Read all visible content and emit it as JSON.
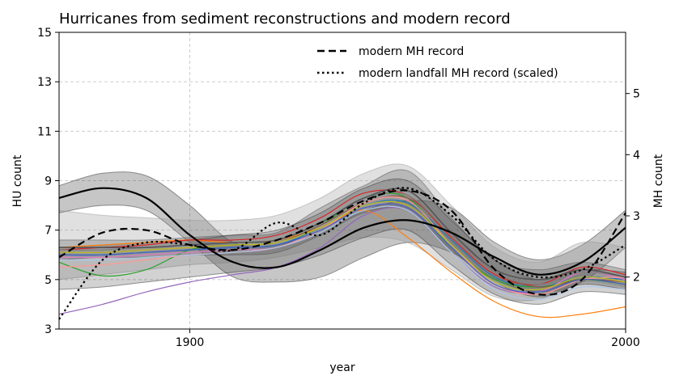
{
  "chart_data": {
    "type": "line",
    "title": "Hurricanes from sediment reconstructions and modern record",
    "xlabel": "year",
    "ylabel": "HU count",
    "y2label": "MH count",
    "xlim": [
      1870,
      2000
    ],
    "ylim": [
      3,
      15
    ],
    "y2lim": [
      1.15,
      6.0
    ],
    "xticks": [
      1900,
      2000
    ],
    "yticks": [
      3,
      5,
      7,
      9,
      11,
      13,
      15
    ],
    "y2ticks": [
      2,
      3,
      4,
      5
    ],
    "grid": true,
    "legend_position": "top-center",
    "colors": {
      "black": "#000000",
      "band_dark": "#333333",
      "band_light": "#999999",
      "grid": "#cccccc"
    },
    "legend": [
      {
        "label": "modern MH record",
        "style": "dashed"
      },
      {
        "label": "modern landfall MH record (scaled)",
        "style": "dotted"
      }
    ],
    "bands": [
      {
        "color": "#333333",
        "opacity": 0.28,
        "x": [
          1870,
          1880,
          1890,
          1900,
          1910,
          1920,
          1930,
          1940,
          1950,
          1960,
          1970,
          1980,
          1990,
          2000
        ],
        "lower": [
          7.7,
          8.0,
          7.8,
          6.5,
          5.1,
          4.9,
          5.1,
          5.9,
          6.5,
          6.1,
          5.0,
          4.5,
          4.9,
          6.3
        ],
        "upper": [
          8.8,
          9.3,
          9.2,
          8.0,
          6.5,
          6.4,
          6.9,
          7.8,
          8.2,
          7.9,
          6.5,
          5.8,
          6.4,
          7.8
        ]
      },
      {
        "color": "#333333",
        "opacity": 0.28,
        "x": [
          1870,
          1880,
          1890,
          1900,
          1910,
          1920,
          1930,
          1940,
          1950,
          1960,
          1970,
          1980,
          1990,
          2000
        ],
        "lower": [
          5.8,
          5.9,
          5.9,
          6.0,
          6.0,
          6.1,
          6.8,
          7.7,
          7.8,
          6.2,
          4.9,
          4.3,
          4.8,
          4.6
        ],
        "upper": [
          6.6,
          6.6,
          6.6,
          6.7,
          6.8,
          6.9,
          7.9,
          8.8,
          9.4,
          7.5,
          5.8,
          5.4,
          5.7,
          5.4
        ]
      },
      {
        "color": "#999999",
        "opacity": 0.3,
        "x": [
          1870,
          1880,
          1890,
          1900,
          1910,
          1920,
          1930,
          1940,
          1950,
          1960,
          1970,
          1980,
          1990,
          2000
        ],
        "lower": [
          5.0,
          5.2,
          5.4,
          5.6,
          5.7,
          5.9,
          6.3,
          6.7,
          6.5,
          5.4,
          4.3,
          4.2,
          4.9,
          4.7
        ],
        "upper": [
          7.8,
          7.6,
          7.5,
          7.4,
          7.4,
          7.6,
          8.3,
          9.3,
          9.6,
          8.0,
          6.3,
          5.7,
          6.5,
          6.3
        ]
      },
      {
        "color": "#333333",
        "opacity": 0.22,
        "x": [
          1870,
          1880,
          1890,
          1900,
          1910,
          1920,
          1930,
          1940,
          1950,
          1960,
          1970,
          1980,
          1990,
          2000
        ],
        "lower": [
          4.6,
          4.7,
          4.9,
          5.1,
          5.3,
          5.5,
          6.0,
          6.7,
          7.0,
          5.6,
          4.4,
          4.0,
          4.5,
          4.4
        ],
        "upper": [
          6.3,
          6.4,
          6.5,
          6.6,
          6.8,
          7.0,
          7.7,
          8.7,
          9.0,
          7.4,
          5.8,
          5.0,
          5.4,
          5.3
        ]
      }
    ],
    "series": [
      {
        "name": "",
        "color": "#1f77b4",
        "width": 1.2,
        "x": [
          1870,
          1880,
          1890,
          1900,
          1910,
          1920,
          1930,
          1940,
          1950,
          1960,
          1970,
          1980,
          1990,
          2000
        ],
        "y": [
          6.0,
          6.0,
          6.1,
          6.2,
          6.3,
          6.4,
          7.1,
          8.0,
          8.1,
          6.6,
          5.1,
          4.7,
          5.1,
          5.0
        ]
      },
      {
        "name": "",
        "color": "#ff7f0e",
        "width": 1.2,
        "x": [
          1870,
          1880,
          1890,
          1900,
          1910,
          1920,
          1930,
          1940,
          1950,
          1960,
          1970,
          1980,
          1990,
          2000
        ],
        "y": [
          6.3,
          6.4,
          6.5,
          6.6,
          6.5,
          6.6,
          7.1,
          7.8,
          6.7,
          5.3,
          4.1,
          3.5,
          3.6,
          3.9
        ]
      },
      {
        "name": "",
        "color": "#2ca02c",
        "width": 1.2,
        "x": [
          1870,
          1880,
          1890,
          1900,
          1910,
          1920,
          1930,
          1940,
          1950,
          1960,
          1970,
          1980,
          1990,
          2000
        ],
        "y": [
          5.7,
          5.15,
          5.4,
          6.2,
          6.4,
          6.5,
          7.2,
          8.3,
          8.3,
          6.3,
          5.0,
          4.7,
          5.0,
          4.8
        ]
      },
      {
        "name": "",
        "color": "#d62728",
        "width": 1.2,
        "x": [
          1870,
          1880,
          1890,
          1900,
          1910,
          1920,
          1930,
          1940,
          1950,
          1960,
          1970,
          1980,
          1990,
          2000
        ],
        "y": [
          6.2,
          6.3,
          6.4,
          6.6,
          6.6,
          6.8,
          7.5,
          8.5,
          8.4,
          6.7,
          5.2,
          4.8,
          5.5,
          5.2
        ]
      },
      {
        "name": "",
        "color": "#9467bd",
        "width": 1.2,
        "x": [
          1870,
          1880,
          1890,
          1900,
          1910,
          1920,
          1930,
          1940,
          1950,
          1960,
          1970,
          1980,
          1990,
          2000
        ],
        "y": [
          3.6,
          4.0,
          4.5,
          4.9,
          5.2,
          5.5,
          6.3,
          7.6,
          7.8,
          6.1,
          4.7,
          4.5,
          5.3,
          5.0
        ]
      },
      {
        "name": "",
        "color": "#8c564b",
        "width": 1.2,
        "x": [
          1870,
          1880,
          1890,
          1900,
          1910,
          1920,
          1930,
          1940,
          1950,
          1960,
          1970,
          1980,
          1990,
          2000
        ],
        "y": [
          6.1,
          6.1,
          6.2,
          6.3,
          6.4,
          6.5,
          7.2,
          8.1,
          8.3,
          6.8,
          5.3,
          4.7,
          5.0,
          4.9
        ]
      },
      {
        "name": "",
        "color": "#e377c2",
        "width": 1.2,
        "x": [
          1870,
          1880,
          1890,
          1900,
          1910,
          1920,
          1930,
          1940,
          1950,
          1960,
          1970,
          1980,
          1990,
          2000
        ],
        "y": [
          5.9,
          5.9,
          6.0,
          6.1,
          6.2,
          6.3,
          7.0,
          7.9,
          7.9,
          6.3,
          4.8,
          4.5,
          5.3,
          5.0
        ]
      },
      {
        "name": "",
        "color": "#7f7f7f",
        "width": 1.2,
        "x": [
          1870,
          1880,
          1890,
          1900,
          1910,
          1920,
          1930,
          1940,
          1950,
          1960,
          1970,
          1980,
          1990,
          2000
        ],
        "y": [
          6.2,
          6.2,
          6.3,
          6.4,
          6.5,
          6.6,
          7.3,
          8.3,
          8.4,
          6.8,
          5.3,
          4.8,
          5.3,
          5.1
        ]
      },
      {
        "name": "",
        "color": "#ff9896",
        "width": 1.2,
        "x": [
          1870,
          1880,
          1890,
          1900,
          1910,
          1920,
          1930,
          1940,
          1950,
          1960,
          1970,
          1980,
          1990,
          2000
        ],
        "y": [
          5.5,
          5.6,
          5.8,
          6.0,
          6.1,
          6.3,
          7.0,
          8.1,
          8.2,
          6.4,
          4.8,
          4.4,
          5.0,
          5.1
        ]
      },
      {
        "name": "",
        "color": "#aec7e8",
        "width": 1.2,
        "x": [
          1870,
          1880,
          1890,
          1900,
          1910,
          1920,
          1930,
          1940,
          1950,
          1960,
          1970,
          1980,
          1990,
          2000
        ],
        "y": [
          5.8,
          5.8,
          5.9,
          6.0,
          6.1,
          6.3,
          6.9,
          7.8,
          7.8,
          6.1,
          4.6,
          4.2,
          4.7,
          4.6
        ]
      },
      {
        "name": "",
        "color": "#4060c0",
        "width": 1.2,
        "x": [
          1870,
          1880,
          1890,
          1900,
          1910,
          1920,
          1930,
          1940,
          1950,
          1960,
          1970,
          1980,
          1990,
          2000
        ],
        "y": [
          6.0,
          6.0,
          6.1,
          6.2,
          6.3,
          6.4,
          7.0,
          7.9,
          7.9,
          6.3,
          4.8,
          4.5,
          5.0,
          4.8
        ]
      },
      {
        "name": "",
        "color": "#bcbd22",
        "width": 1.2,
        "x": [
          1870,
          1880,
          1890,
          1900,
          1910,
          1920,
          1930,
          1940,
          1950,
          1960,
          1970,
          1980,
          1990,
          2000
        ],
        "y": [
          6.1,
          6.1,
          6.2,
          6.3,
          6.4,
          6.5,
          7.1,
          8.0,
          8.0,
          6.4,
          4.9,
          4.6,
          5.1,
          4.9
        ]
      },
      {
        "name": "",
        "color": "#555555",
        "width": 1.6,
        "x": [
          1870,
          1880,
          1890,
          1900,
          1910,
          1920,
          1930,
          1940,
          1950,
          1960,
          1970,
          1980,
          1990,
          2000
        ],
        "y": [
          6.3,
          6.3,
          6.3,
          6.4,
          6.5,
          6.6,
          7.3,
          8.3,
          8.6,
          6.9,
          5.4,
          5.0,
          5.4,
          5.1
        ]
      },
      {
        "name": "",
        "color": "#000000",
        "width": 2.2,
        "style": "solid",
        "x": [
          1870,
          1880,
          1890,
          1900,
          1910,
          1920,
          1930,
          1940,
          1950,
          1960,
          1970,
          1980,
          1990,
          2000
        ],
        "y": [
          8.3,
          8.7,
          8.3,
          6.8,
          5.7,
          5.5,
          6.2,
          7.1,
          7.4,
          6.9,
          5.9,
          5.2,
          5.7,
          7.1
        ]
      },
      {
        "name": "modern MH record",
        "color": "#000000",
        "width": 2.2,
        "style": "dashed",
        "x": [
          1870,
          1880,
          1890,
          1900,
          1910,
          1920,
          1930,
          1940,
          1950,
          1960,
          1970,
          1980,
          1990,
          2000
        ],
        "y": [
          5.9,
          6.9,
          7.0,
          6.4,
          6.2,
          6.6,
          7.3,
          8.2,
          8.6,
          7.8,
          5.4,
          4.4,
          5.0,
          7.7
        ]
      },
      {
        "name": "modern landfall MH record (scaled)",
        "color": "#000000",
        "width": 2.2,
        "style": "dotted",
        "x": [
          1870,
          1880,
          1890,
          1900,
          1910,
          1920,
          1930,
          1940,
          1950,
          1960,
          1970,
          1980,
          1990,
          2000
        ],
        "y": [
          3.4,
          5.8,
          6.5,
          6.4,
          6.2,
          7.3,
          6.8,
          8.1,
          8.7,
          7.6,
          5.8,
          5.1,
          5.4,
          6.4
        ]
      }
    ]
  }
}
